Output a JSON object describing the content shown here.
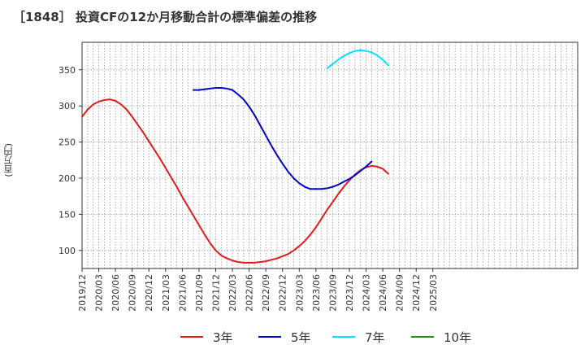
{
  "chart_data": {
    "type": "line",
    "title": "［1848］ 投資CFの12か月移動合計の標準偏差の推移",
    "ylabel": "(百万円)",
    "xlabel": "",
    "x_ticks": [
      "2019/12",
      "2020/03",
      "2020/06",
      "2020/09",
      "2020/12",
      "2021/03",
      "2021/06",
      "2021/09",
      "2021/12",
      "2022/03",
      "2022/06",
      "2022/09",
      "2022/12",
      "2023/03",
      "2023/06",
      "2023/09",
      "2023/12",
      "2024/03",
      "2024/06",
      "2024/09",
      "2024/12",
      "2025/03"
    ],
    "y_ticks": [
      100,
      150,
      200,
      250,
      300,
      350
    ],
    "ylim": [
      75,
      388
    ],
    "grid": true,
    "legend_position": "bottom",
    "series": [
      {
        "name": "3年",
        "color": "#e41a1c",
        "points": [
          [
            "2019/12",
            285
          ],
          [
            "2020/01",
            295
          ],
          [
            "2020/02",
            302
          ],
          [
            "2020/03",
            306
          ],
          [
            "2020/04",
            308
          ],
          [
            "2020/05",
            309
          ],
          [
            "2020/06",
            307
          ],
          [
            "2020/07",
            302
          ],
          [
            "2020/08",
            295
          ],
          [
            "2020/09",
            285
          ],
          [
            "2020/10",
            274
          ],
          [
            "2020/11",
            263
          ],
          [
            "2020/12",
            251
          ],
          [
            "2021/01",
            239
          ],
          [
            "2021/02",
            227
          ],
          [
            "2021/03",
            214
          ],
          [
            "2021/04",
            201
          ],
          [
            "2021/05",
            188
          ],
          [
            "2021/06",
            174
          ],
          [
            "2021/07",
            161
          ],
          [
            "2021/08",
            148
          ],
          [
            "2021/09",
            135
          ],
          [
            "2021/10",
            122
          ],
          [
            "2021/11",
            110
          ],
          [
            "2021/12",
            100
          ],
          [
            "2022/01",
            93
          ],
          [
            "2022/02",
            89
          ],
          [
            "2022/03",
            86
          ],
          [
            "2022/04",
            84
          ],
          [
            "2022/05",
            83
          ],
          [
            "2022/06",
            83
          ],
          [
            "2022/07",
            83
          ],
          [
            "2022/08",
            84
          ],
          [
            "2022/09",
            85
          ],
          [
            "2022/10",
            87
          ],
          [
            "2022/11",
            89
          ],
          [
            "2022/12",
            92
          ],
          [
            "2023/01",
            95
          ],
          [
            "2023/02",
            100
          ],
          [
            "2023/03",
            106
          ],
          [
            "2023/04",
            113
          ],
          [
            "2023/05",
            122
          ],
          [
            "2023/06",
            132
          ],
          [
            "2023/07",
            144
          ],
          [
            "2023/08",
            156
          ],
          [
            "2023/09",
            167
          ],
          [
            "2023/10",
            178
          ],
          [
            "2023/11",
            188
          ],
          [
            "2023/12",
            197
          ],
          [
            "2024/01",
            205
          ],
          [
            "2024/02",
            211
          ],
          [
            "2024/03",
            215
          ],
          [
            "2024/04",
            217
          ],
          [
            "2024/05",
            216
          ],
          [
            "2024/06",
            213
          ],
          [
            "2024/07",
            206
          ]
        ]
      },
      {
        "name": "5年",
        "color": "#0000cd",
        "points": [
          [
            "2021/08",
            322
          ],
          [
            "2021/09",
            322
          ],
          [
            "2021/10",
            323
          ],
          [
            "2021/11",
            324
          ],
          [
            "2021/12",
            325
          ],
          [
            "2022/01",
            325
          ],
          [
            "2022/02",
            324
          ],
          [
            "2022/03",
            322
          ],
          [
            "2022/04",
            316
          ],
          [
            "2022/05",
            309
          ],
          [
            "2022/06",
            299
          ],
          [
            "2022/07",
            287
          ],
          [
            "2022/08",
            273
          ],
          [
            "2022/09",
            259
          ],
          [
            "2022/10",
            245
          ],
          [
            "2022/11",
            232
          ],
          [
            "2022/12",
            220
          ],
          [
            "2023/01",
            209
          ],
          [
            "2023/02",
            200
          ],
          [
            "2023/03",
            193
          ],
          [
            "2023/04",
            188
          ],
          [
            "2023/05",
            185
          ],
          [
            "2023/06",
            185
          ],
          [
            "2023/07",
            185
          ],
          [
            "2023/08",
            186
          ],
          [
            "2023/09",
            188
          ],
          [
            "2023/10",
            191
          ],
          [
            "2023/11",
            195
          ],
          [
            "2023/12",
            199
          ],
          [
            "2024/01",
            204
          ],
          [
            "2024/02",
            210
          ],
          [
            "2024/03",
            216
          ],
          [
            "2024/04",
            223
          ]
        ]
      },
      {
        "name": "7年",
        "color": "#00e5ff",
        "points": [
          [
            "2023/08",
            352
          ],
          [
            "2023/09",
            358
          ],
          [
            "2023/10",
            364
          ],
          [
            "2023/11",
            369
          ],
          [
            "2023/12",
            373
          ],
          [
            "2024/01",
            376
          ],
          [
            "2024/02",
            377
          ],
          [
            "2024/03",
            376
          ],
          [
            "2024/04",
            374
          ],
          [
            "2024/05",
            370
          ],
          [
            "2024/06",
            364
          ],
          [
            "2024/07",
            356
          ]
        ]
      },
      {
        "name": "10年",
        "color": "#228b22",
        "points": []
      }
    ]
  }
}
